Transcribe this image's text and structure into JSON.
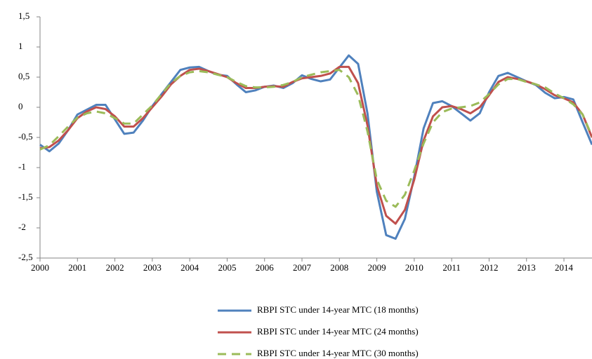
{
  "chart_data": {
    "type": "line",
    "x": [
      2000,
      2000.25,
      2000.5,
      2000.75,
      2001,
      2001.25,
      2001.5,
      2001.75,
      2002,
      2002.25,
      2002.5,
      2002.75,
      2003,
      2003.25,
      2003.5,
      2003.75,
      2004,
      2004.25,
      2004.5,
      2004.75,
      2005,
      2005.25,
      2005.5,
      2005.75,
      2006,
      2006.25,
      2006.5,
      2006.75,
      2007,
      2007.25,
      2007.5,
      2007.75,
      2008,
      2008.25,
      2008.5,
      2008.75,
      2009,
      2009.25,
      2009.5,
      2009.75,
      2010,
      2010.25,
      2010.5,
      2010.75,
      2011,
      2011.25,
      2011.5,
      2011.75,
      2012,
      2012.25,
      2012.5,
      2012.75,
      2013,
      2013.25,
      2013.5,
      2013.75,
      2014,
      2014.25,
      2014.5,
      2014.75
    ],
    "series": [
      {
        "name": "RBPI STC under 14-year MTC (18 months)",
        "color": "#4f81bd",
        "line_style": "solid",
        "values": [
          -0.62,
          -0.73,
          -0.6,
          -0.38,
          -0.12,
          -0.04,
          0.04,
          0.04,
          -0.2,
          -0.44,
          -0.42,
          -0.22,
          0.02,
          0.22,
          0.42,
          0.62,
          0.66,
          0.67,
          0.6,
          0.54,
          0.52,
          0.38,
          0.25,
          0.28,
          0.34,
          0.36,
          0.32,
          0.4,
          0.53,
          0.47,
          0.43,
          0.46,
          0.66,
          0.86,
          0.72,
          -0.1,
          -1.4,
          -2.12,
          -2.18,
          -1.85,
          -1.15,
          -0.35,
          0.07,
          0.1,
          0.02,
          -0.1,
          -0.22,
          -0.1,
          0.25,
          0.52,
          0.57,
          0.5,
          0.43,
          0.37,
          0.24,
          0.15,
          0.17,
          0.13,
          -0.25,
          -0.62
        ]
      },
      {
        "name": "RBPI STC under 14-year MTC (24 months)",
        "color": "#c0504d",
        "line_style": "solid",
        "values": [
          -0.68,
          -0.66,
          -0.55,
          -0.38,
          -0.18,
          -0.07,
          0,
          -0.03,
          -0.15,
          -0.32,
          -0.32,
          -0.18,
          0,
          0.18,
          0.38,
          0.52,
          0.62,
          0.64,
          0.6,
          0.55,
          0.5,
          0.4,
          0.32,
          0.32,
          0.34,
          0.35,
          0.34,
          0.42,
          0.48,
          0.5,
          0.52,
          0.56,
          0.67,
          0.67,
          0.4,
          -0.3,
          -1.3,
          -1.8,
          -1.93,
          -1.7,
          -1.2,
          -0.55,
          -0.15,
          0,
          0.02,
          -0.03,
          -0.1,
          0,
          0.2,
          0.42,
          0.5,
          0.47,
          0.43,
          0.38,
          0.3,
          0.2,
          0.15,
          0.08,
          -0.12,
          -0.5
        ]
      },
      {
        "name": "RBPI STC under 14-year MTC (30 months)",
        "color": "#9bbb59",
        "line_style": "dashed",
        "values": [
          -0.7,
          -0.63,
          -0.48,
          -0.32,
          -0.17,
          -0.1,
          -0.07,
          -0.1,
          -0.18,
          -0.27,
          -0.27,
          -0.12,
          0.03,
          0.22,
          0.4,
          0.52,
          0.58,
          0.6,
          0.58,
          0.54,
          0.5,
          0.42,
          0.35,
          0.33,
          0.33,
          0.34,
          0.37,
          0.42,
          0.5,
          0.54,
          0.58,
          0.6,
          0.62,
          0.5,
          0.2,
          -0.4,
          -1.2,
          -1.55,
          -1.65,
          -1.45,
          -1.05,
          -0.6,
          -0.25,
          -0.08,
          -0.02,
          0,
          0.02,
          0.08,
          0.22,
          0.38,
          0.47,
          0.47,
          0.42,
          0.38,
          0.33,
          0.23,
          0.15,
          0.05,
          -0.12,
          -0.48
        ]
      }
    ],
    "xlim": [
      2000,
      2014.75
    ],
    "xticks": [
      2000,
      2001,
      2002,
      2003,
      2004,
      2005,
      2006,
      2007,
      2008,
      2009,
      2010,
      2011,
      2012,
      2013,
      2014
    ],
    "ylim": [
      -2.5,
      1.5
    ],
    "yticks": [
      {
        "value": 1.5,
        "label": "1,5"
      },
      1,
      {
        "value": 0.5,
        "label": "0,5"
      },
      0,
      {
        "value": -0.5,
        "label": "-0,5"
      },
      -1,
      {
        "value": -1.5,
        "label": "-1,5"
      },
      -2,
      {
        "value": -2.5,
        "label": "-2,5"
      }
    ],
    "grid": false,
    "legend": "bottom"
  }
}
